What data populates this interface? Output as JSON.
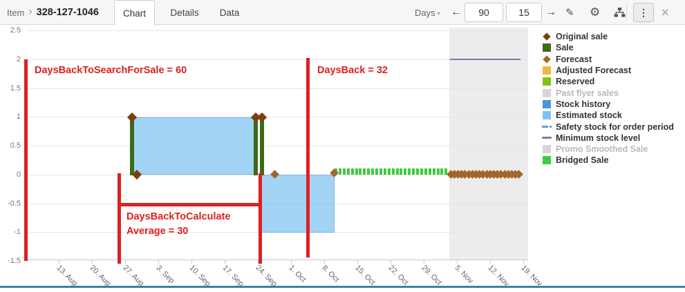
{
  "header": {
    "breadcrumb": {
      "section": "Item",
      "separator": "›",
      "item_id": "328-127-1046"
    },
    "tabs": [
      {
        "label": "Chart",
        "active": true
      },
      {
        "label": "Details",
        "active": false
      },
      {
        "label": "Data",
        "active": false
      }
    ],
    "toolbar": {
      "period_label": "Days",
      "days_back_value": "90",
      "days_forward_value": "15",
      "glyphs": {
        "caret": "▾",
        "left_arrow": "←",
        "right_arrow": "→",
        "pencil": "✎",
        "gear": "⚙",
        "kebab": "⋮",
        "close": "×"
      }
    }
  },
  "chart": {
    "y_axis_ticks": [
      "2.5",
      "2",
      "1.5",
      "1",
      "0.5",
      "0",
      "-0.5",
      "-1",
      "-1.5"
    ],
    "x_axis_ticks": [
      "13. Aug",
      "20. Aug",
      "27. Aug",
      "3. Sep",
      "10. Sep",
      "17. Sep",
      "24. Sep",
      "1. Oct",
      "8. Oct",
      "15. Oct",
      "22. Oct",
      "29. Oct",
      "5. Nov",
      "12. Nov",
      "19. Nov"
    ],
    "annotations": {
      "search_for_sale": "DaysBackToSearchForSale = 60",
      "days_back": "DaysBack = 32",
      "calculate_line1": "DaysBackToCalculate",
      "calculate_line2": "Average = 30",
      "color": "#df1f1f"
    }
  },
  "legend": {
    "items": [
      {
        "label": "Original sale",
        "shape": "diamond",
        "color": "#7d3f0e",
        "muted": false
      },
      {
        "label": "Sale",
        "shape": "square",
        "color": "#3c6b16",
        "muted": false
      },
      {
        "label": "Forecast",
        "shape": "diamond",
        "color": "#a2662c",
        "muted": false
      },
      {
        "label": "Adjusted Forecast",
        "shape": "square",
        "color": "#efb73e",
        "muted": false
      },
      {
        "label": "Reserved",
        "shape": "square",
        "color": "#7dc510",
        "muted": false
      },
      {
        "label": "Past flyer sales",
        "shape": "square",
        "color": "#d6d6d6",
        "muted": true
      },
      {
        "label": "Stock history",
        "shape": "square",
        "color": "#4a96d8",
        "muted": false
      },
      {
        "label": "Estimated stock",
        "shape": "square",
        "color": "#7cc2ef",
        "muted": false
      },
      {
        "label": "Safety stock for order period",
        "shape": "dashdot",
        "color": "#7096c8",
        "muted": false
      },
      {
        "label": "Minimum stock level",
        "shape": "line",
        "color": "#8878a8",
        "muted": false
      },
      {
        "label": "Promo Smoothed Sale",
        "shape": "square",
        "color": "#d6d6d6",
        "muted": true
      },
      {
        "label": "Bridged Sale",
        "shape": "square",
        "color": "#3dcc3d",
        "muted": false
      }
    ]
  },
  "chart_data": {
    "type": "mixed",
    "ylim": [
      -1.5,
      2.5
    ],
    "x_range": [
      "6. Aug",
      "23. Nov"
    ],
    "grid": true,
    "legend_position": "right",
    "series": [
      {
        "name": "Sale",
        "type": "column",
        "color": "#3c6b16",
        "points": [
          {
            "x": "28. Aug",
            "y": 1
          },
          {
            "x": "24. Sep",
            "y": 1
          },
          {
            "x": "25. Sep",
            "y": 1
          }
        ]
      },
      {
        "name": "Original sale",
        "type": "scatter-diamond",
        "color": "#7d3f0e",
        "points": [
          {
            "x": "28. Aug",
            "y": 1
          },
          {
            "x": "29. Aug",
            "y": 0
          },
          {
            "x": "24. Sep",
            "y": 1
          },
          {
            "x": "25. Sep",
            "y": 1
          }
        ]
      },
      {
        "name": "Estimated stock",
        "type": "area",
        "color": "#aad3f2",
        "segments": [
          {
            "from": "28. Aug",
            "to": "24. Sep",
            "y": 1
          },
          {
            "from": "25. Sep",
            "to": "10. Oct",
            "y": -1
          }
        ]
      },
      {
        "name": "Forecast",
        "type": "scatter-diamond",
        "color": "#a2662c",
        "points": [
          {
            "x": "28. Sep",
            "y": 0
          },
          {
            "x": "10. Oct",
            "y": 0
          },
          {
            "x": "3. Nov through 19. Nov daily",
            "y": 0
          }
        ]
      },
      {
        "name": "Bridged Sale",
        "type": "dashed-bar",
        "color": "#3dcc3d",
        "segments": [
          {
            "from": "10. Oct",
            "to": "3. Nov",
            "y": 0
          }
        ]
      },
      {
        "name": "Minimum stock level",
        "type": "line",
        "color": "#8173ab",
        "segments": [
          {
            "from": "5. Nov",
            "to": "19. Nov",
            "y": 2
          }
        ]
      }
    ],
    "future_band": {
      "from": "3. Nov",
      "to": "20. Nov"
    },
    "annotation_values": {
      "DaysBackToSearchForSale": 60,
      "DaysBack": 32,
      "DaysBackToCalculateAverage": 30
    }
  }
}
